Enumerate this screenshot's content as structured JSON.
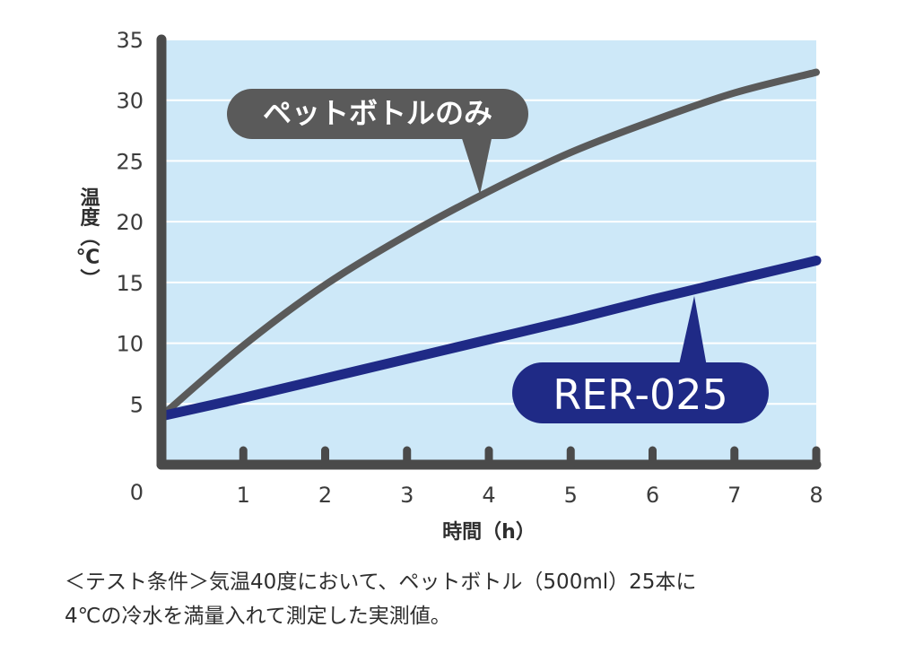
{
  "chart_data": {
    "type": "line",
    "xlabel": "時間（h）",
    "ylabel": "温度（℃）",
    "xlim": [
      0,
      8
    ],
    "ylim": [
      0,
      35
    ],
    "x_ticks": [
      1,
      2,
      3,
      4,
      5,
      6,
      7,
      8
    ],
    "y_ticks": [
      5,
      10,
      15,
      20,
      25,
      30,
      35
    ],
    "origin_label": "0",
    "grid": true,
    "series": [
      {
        "name": "ペットボトルのみ",
        "color": "#5a5a5a",
        "x": [
          0,
          1,
          2,
          3,
          4,
          5,
          6,
          7,
          8
        ],
        "y": [
          4,
          9.8,
          14.8,
          18.9,
          22.5,
          25.7,
          28.3,
          30.6,
          32.3
        ]
      },
      {
        "name": "RER-025",
        "color": "#1f2a86",
        "x": [
          0,
          1,
          2,
          3,
          4,
          5,
          6,
          7,
          8
        ],
        "y": [
          4,
          5.5,
          7.1,
          8.7,
          10.3,
          11.9,
          13.6,
          15.2,
          16.8
        ]
      }
    ]
  },
  "note": {
    "line1": "＜テスト条件＞気温40度において、ペットボトル（500ml）25本に",
    "line2": "4℃の冷水を満量入れて測定した実測値。"
  },
  "colors": {
    "plot_background": "#cde8f8",
    "grid": "#ffffff",
    "axis": "#4a4a4a"
  }
}
